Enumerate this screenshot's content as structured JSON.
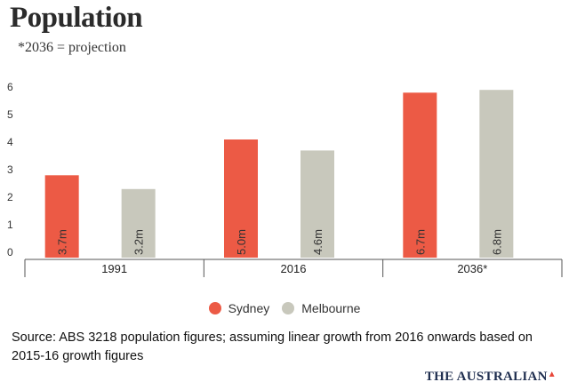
{
  "header": {
    "title": "Population",
    "subtitle": "*2036 = projection"
  },
  "legend": {
    "items": [
      {
        "label": "Sydney",
        "color": "#ec5a45"
      },
      {
        "label": "Melbourne",
        "color": "#c8c8bc"
      }
    ]
  },
  "footer": {
    "source": "Source:  ABS 3218 population figures; assuming linear growth from 2016 onwards based on 2015-16 growth figures",
    "brand": "THE AUSTRALIAN"
  },
  "chart_data": {
    "type": "bar",
    "categories": [
      "1991",
      "2016",
      "2036*"
    ],
    "series": [
      {
        "name": "Sydney",
        "values": [
          3.7,
          5.0,
          6.7
        ],
        "labels": [
          "3.7m",
          "5.0m",
          "6.7m"
        ],
        "color": "#ec5a45"
      },
      {
        "name": "Melbourne",
        "values": [
          3.2,
          4.6,
          6.8
        ],
        "labels": [
          "3.2m",
          "4.6m",
          "6.8m"
        ],
        "color": "#c8c8bc"
      }
    ],
    "yticks": [
      0,
      1,
      2,
      3,
      4,
      5,
      6
    ],
    "ylim": [
      0,
      7
    ],
    "grid": false,
    "legend": "bottom-center"
  }
}
